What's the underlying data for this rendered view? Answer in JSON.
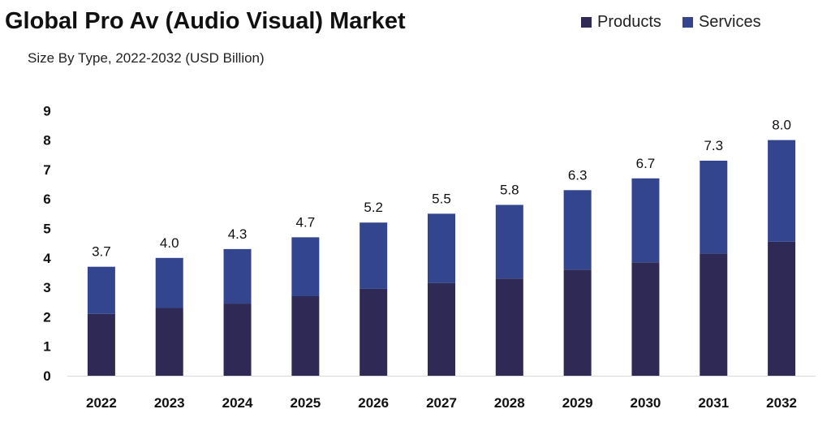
{
  "chart_data": {
    "type": "bar",
    "stacked": true,
    "title": "Global Pro Av (Audio Visual) Market",
    "subtitle": "Size By Type, 2022-2032 (USD Billion)",
    "categories": [
      "2022",
      "2023",
      "2024",
      "2025",
      "2026",
      "2027",
      "2028",
      "2029",
      "2030",
      "2031",
      "2032"
    ],
    "series": [
      {
        "name": "Products",
        "color": "#2e2a55",
        "values": [
          2.1,
          2.3,
          2.45,
          2.7,
          2.95,
          3.15,
          3.3,
          3.6,
          3.85,
          4.15,
          4.55
        ]
      },
      {
        "name": "Services",
        "color": "#33458e",
        "values": [
          1.6,
          1.7,
          1.85,
          2.0,
          2.25,
          2.35,
          2.5,
          2.7,
          2.85,
          3.15,
          3.45
        ]
      }
    ],
    "totals": [
      "3.7",
      "4.0",
      "4.3",
      "4.7",
      "5.2",
      "5.5",
      "5.8",
      "6.3",
      "6.7",
      "7.3",
      "8.0"
    ],
    "yticks": [
      "0",
      "1",
      "2",
      "3",
      "4",
      "5",
      "6",
      "7",
      "8",
      "9"
    ],
    "ylim": [
      0,
      9
    ],
    "legend_position": "top-right",
    "grid": false
  }
}
